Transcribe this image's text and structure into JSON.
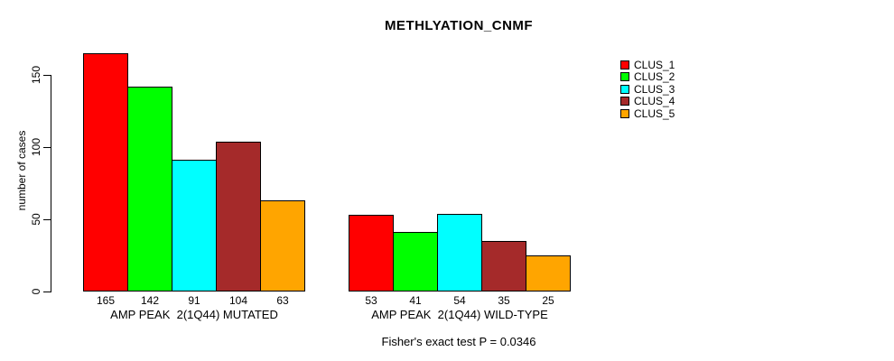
{
  "chart_data": {
    "type": "bar",
    "title": "METHLYATION_CNMF",
    "ylabel": "number of cases",
    "xlabel": "",
    "ylim": [
      0,
      165
    ],
    "yticks": [
      0,
      50,
      100,
      150
    ],
    "grid": false,
    "legend_position": "top-right",
    "series": [
      {
        "name": "CLUS_1",
        "color": "#ff0000"
      },
      {
        "name": "CLUS_2",
        "color": "#00ff00"
      },
      {
        "name": "CLUS_3",
        "color": "#00ffff"
      },
      {
        "name": "CLUS_4",
        "color": "#a52a2a"
      },
      {
        "name": "CLUS_5",
        "color": "#ffa500"
      }
    ],
    "groups": [
      {
        "label": "AMP PEAK  2(1Q44) MUTATED",
        "values": [
          165,
          142,
          91,
          104,
          63
        ]
      },
      {
        "label": "AMP PEAK  2(1Q44) WILD-TYPE",
        "values": [
          53,
          41,
          54,
          35,
          25
        ]
      }
    ],
    "annotation": "Fisher's exact test P = 0.0346",
    "axis_color": "#000000",
    "background_color": "#ffffff"
  }
}
